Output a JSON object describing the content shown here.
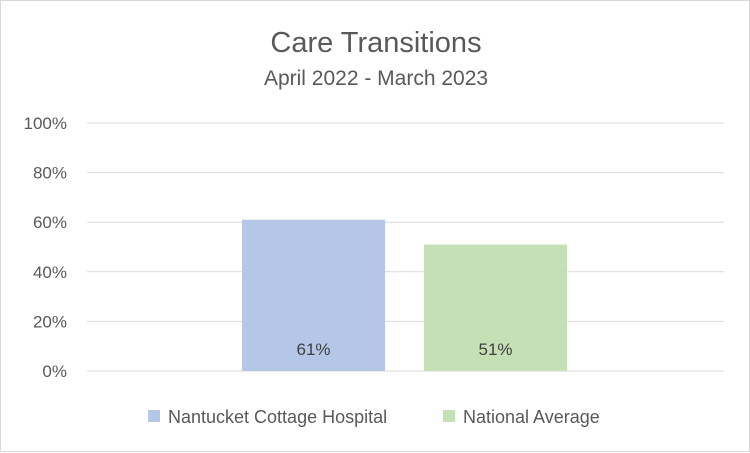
{
  "chart_data": {
    "type": "bar",
    "title": "Care Transitions",
    "subtitle": "April 2022 - March 2023",
    "xlabel": "",
    "ylabel": "",
    "ylim": [
      0,
      100
    ],
    "y_ticks": [
      "0%",
      "20%",
      "40%",
      "60%",
      "80%",
      "100%"
    ],
    "y_tick_values": [
      0,
      20,
      40,
      60,
      80,
      100
    ],
    "grid": true,
    "legend_position": "bottom",
    "series": [
      {
        "name": "Nantucket Cottage Hospital",
        "value": 61,
        "label": "61%",
        "color": "#b4c7e7"
      },
      {
        "name": "National Average",
        "value": 51,
        "label": "51%",
        "color": "#c5e0b4"
      }
    ]
  }
}
